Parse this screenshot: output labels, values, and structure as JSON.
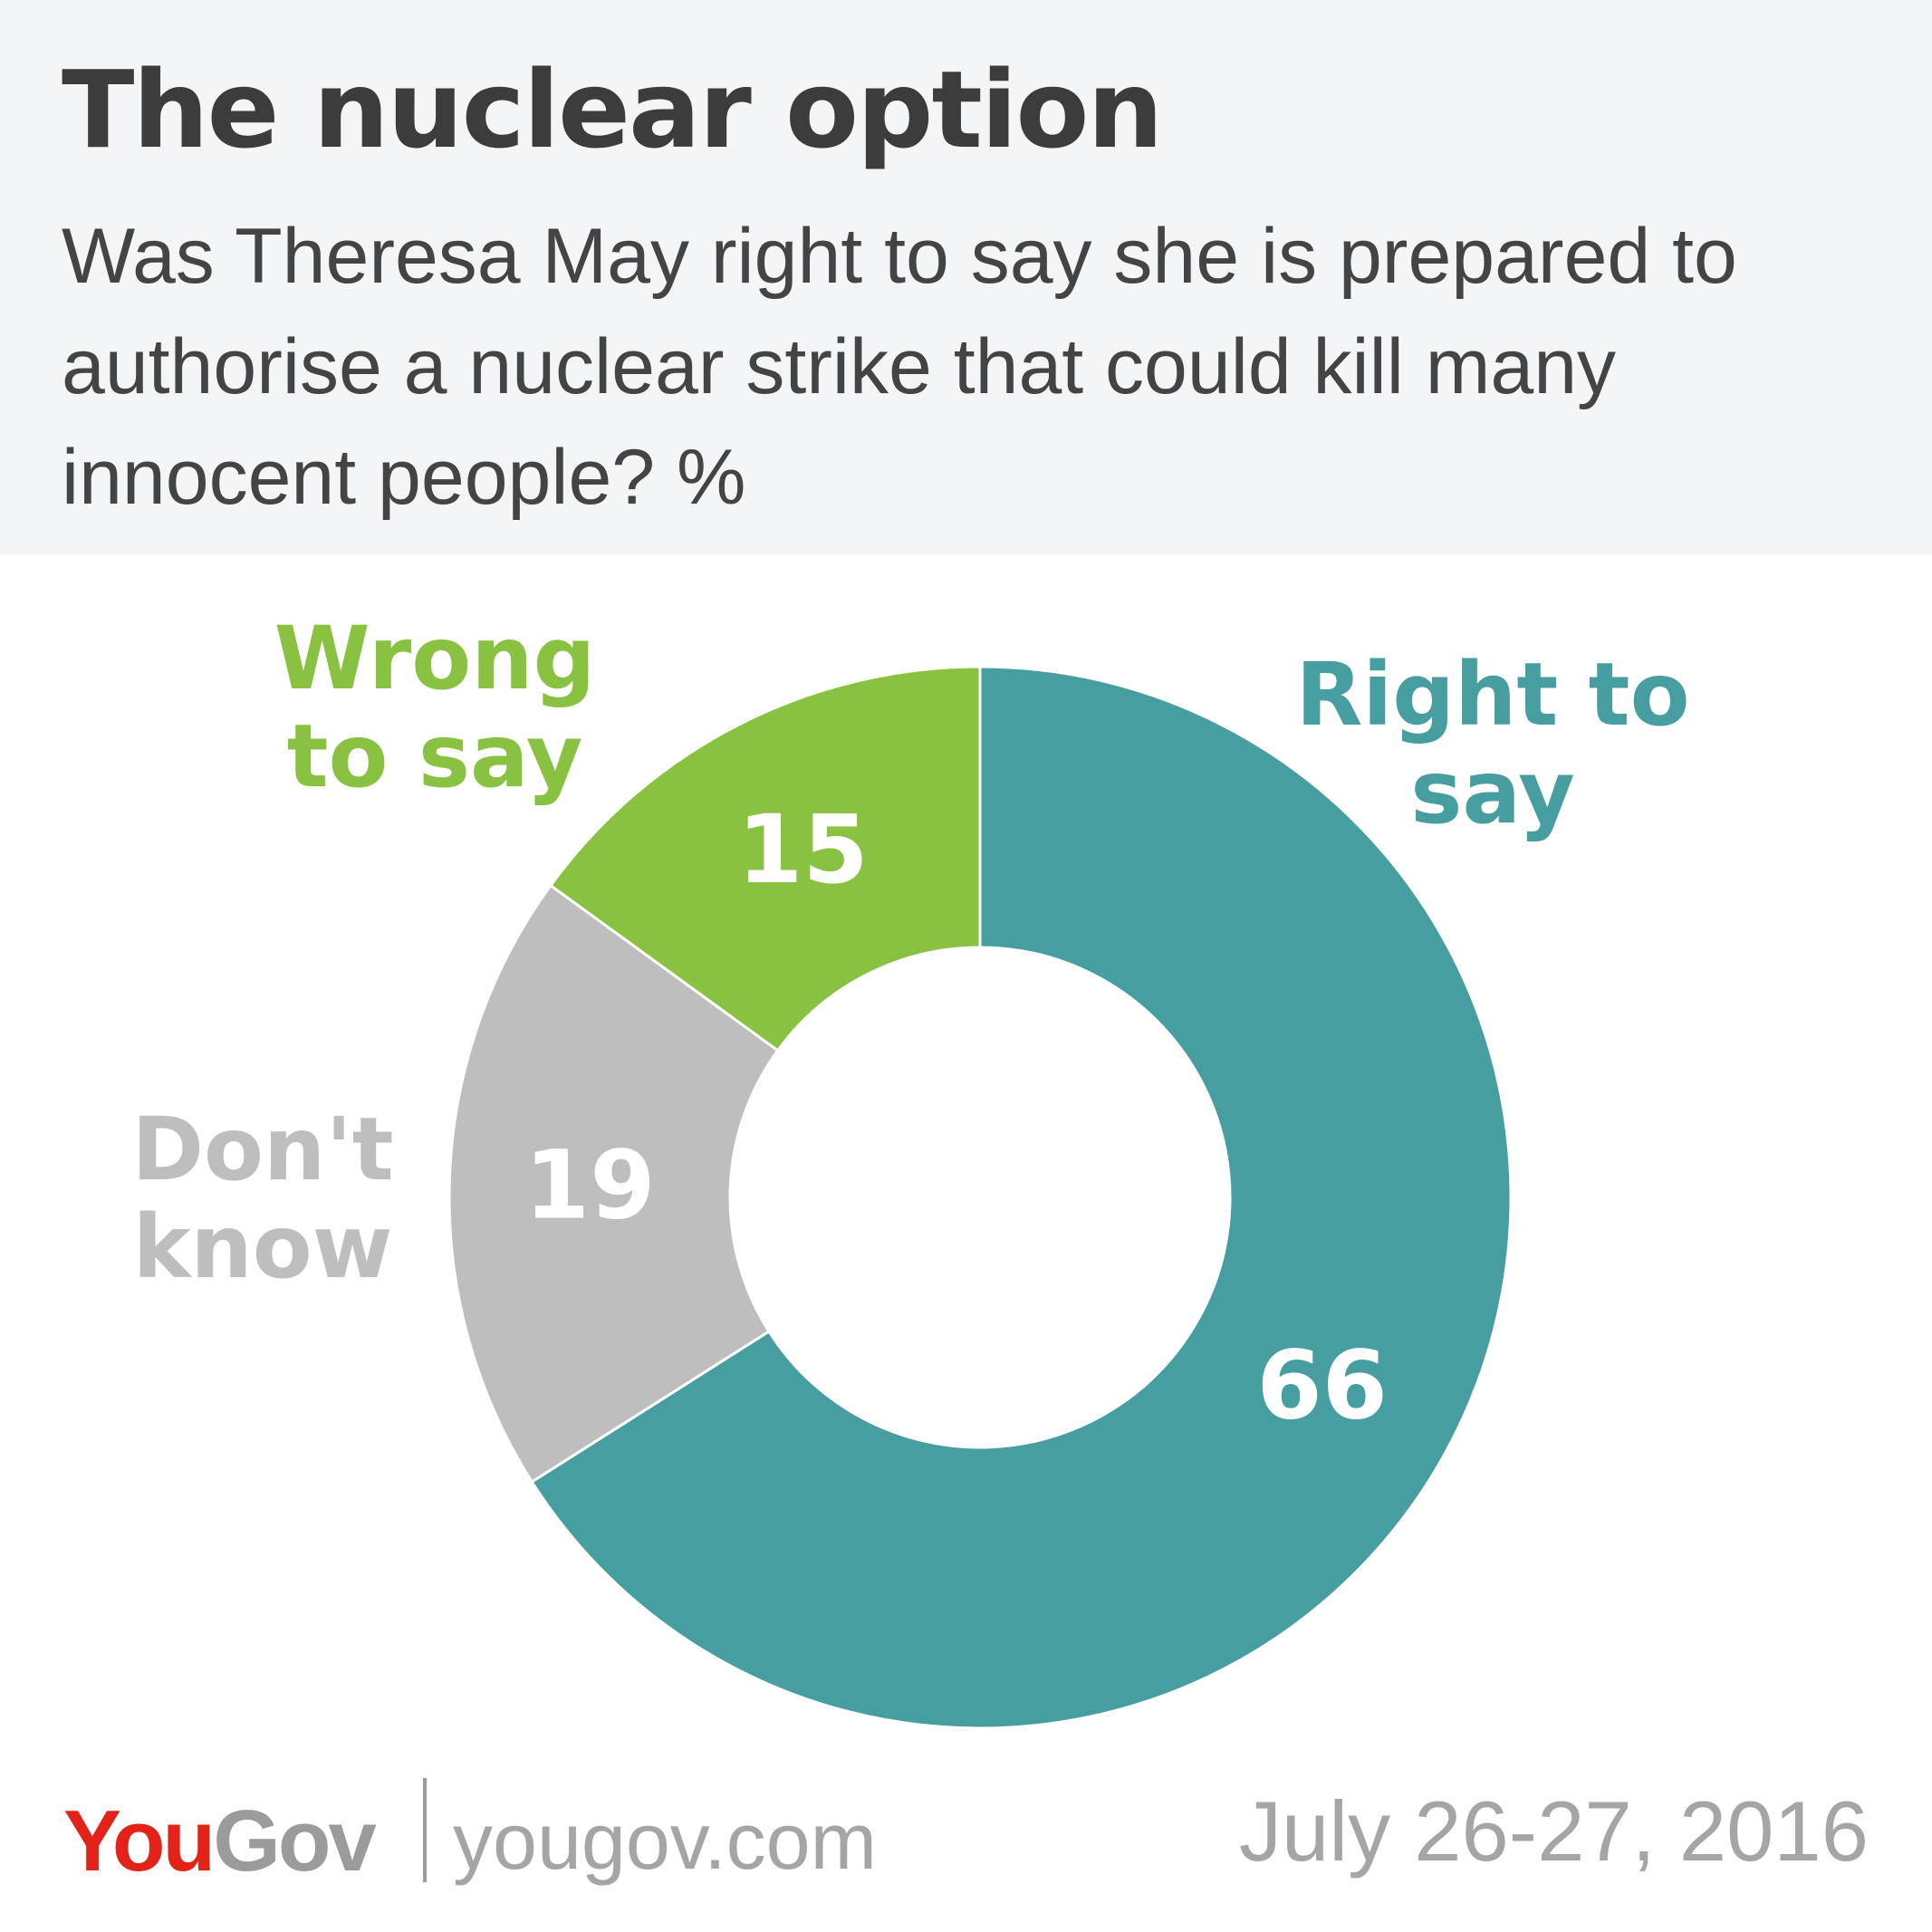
{
  "header": {
    "title": "The nuclear option",
    "subtitle": "Was Theresa May right to say she is prepared to authorise a nuclear strike that could kill many innocent people? %"
  },
  "chart_data": {
    "type": "pie",
    "donut": true,
    "unit": "%",
    "categories": [
      "Right to say",
      "Don't know",
      "Wrong to say"
    ],
    "values": [
      66,
      19,
      15
    ],
    "colors": [
      "#469ea0",
      "#bebebe",
      "#88c240"
    ],
    "category_labels": [
      {
        "lines": [
          "Right to",
          "say"
        ]
      },
      {
        "lines": [
          "Don't",
          "know"
        ]
      },
      {
        "lines": [
          "Wrong",
          "to say"
        ]
      }
    ]
  },
  "footer": {
    "logo_you": "You",
    "logo_gov": "Gov",
    "site": "yougov.com",
    "date": "July 26-27, 2016"
  }
}
